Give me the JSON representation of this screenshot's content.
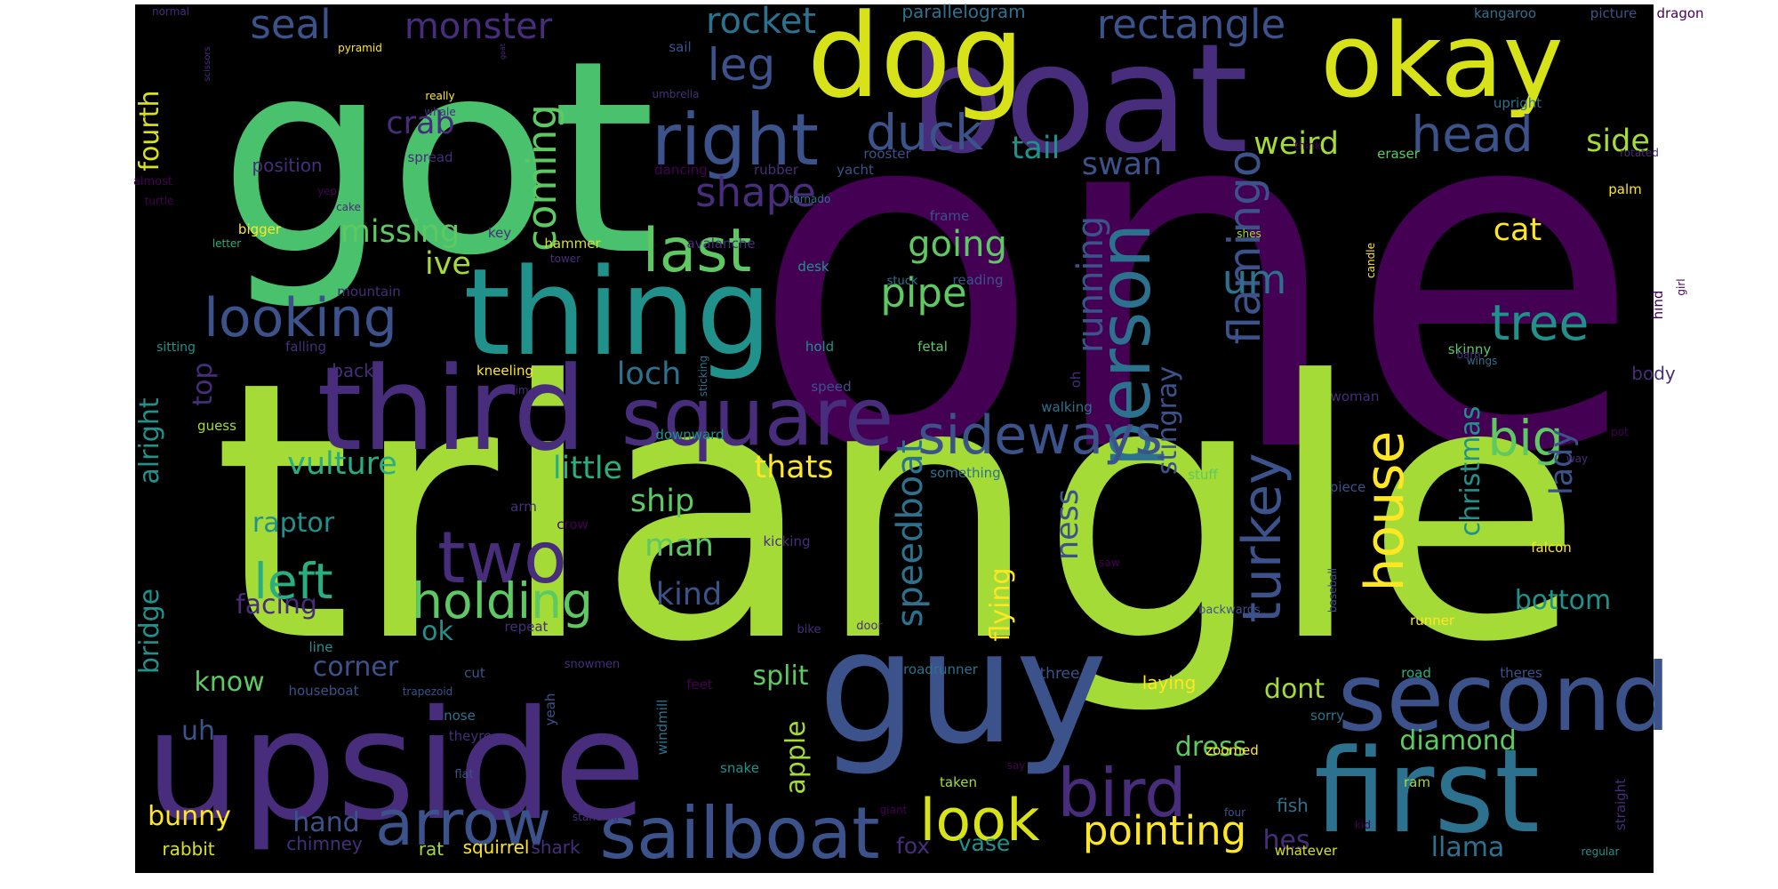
{
  "colors": {
    "page_background": "#ffffff",
    "cloud_background": "#000000",
    "palette": "viridis"
  },
  "words": [
    {
      "text": "one",
      "color": "#440154"
    },
    {
      "text": "triangle",
      "color": "#a5db36"
    },
    {
      "text": "got",
      "color": "#4ac16d"
    },
    {
      "text": "upside",
      "color": "#472d7b"
    },
    {
      "text": "guy",
      "color": "#3b528b"
    },
    {
      "text": "boat",
      "color": "#472d7b"
    },
    {
      "text": "dog",
      "color": "#d8e219"
    },
    {
      "text": "okay",
      "color": "#d8e219"
    },
    {
      "text": "first",
      "color": "#2c728e"
    },
    {
      "text": "thing",
      "color": "#21918c"
    },
    {
      "text": "third",
      "color": "#472d7b"
    },
    {
      "text": "second",
      "color": "#3b528b"
    },
    {
      "text": "square",
      "color": "#472d7b"
    },
    {
      "text": "right",
      "color": "#3b528b"
    },
    {
      "text": "sailboat",
      "color": "#3b528b"
    },
    {
      "text": "arrow",
      "color": "#3b528b"
    },
    {
      "text": "person",
      "color": "#2c728e"
    },
    {
      "text": "bird",
      "color": "#472d7b"
    },
    {
      "text": "last",
      "color": "#5ec962"
    },
    {
      "text": "looking",
      "color": "#3b528b"
    },
    {
      "text": "two",
      "color": "#472d7b"
    },
    {
      "text": "house",
      "color": "#fde725"
    },
    {
      "text": "look",
      "color": "#d8e219"
    },
    {
      "text": "sideways",
      "color": "#3b528b"
    },
    {
      "text": "holding",
      "color": "#5ec962"
    },
    {
      "text": "left",
      "color": "#28ae80"
    },
    {
      "text": "flamingo",
      "color": "#3b528b"
    },
    {
      "text": "turkey",
      "color": "#3b528b"
    },
    {
      "text": "head",
      "color": "#3b528b"
    },
    {
      "text": "rectangle",
      "color": "#3b528b"
    },
    {
      "text": "seal",
      "color": "#3b528b"
    },
    {
      "text": "monster",
      "color": "#472d7b"
    },
    {
      "text": "rocket",
      "color": "#2c728e"
    },
    {
      "text": "duck",
      "color": "#3b528b"
    },
    {
      "text": "tree",
      "color": "#21918c"
    },
    {
      "text": "pointing",
      "color": "#fde725"
    },
    {
      "text": "speedboat",
      "color": "#2c728e"
    },
    {
      "text": "running",
      "color": "#3b528b"
    },
    {
      "text": "big",
      "color": "#5ec962"
    },
    {
      "text": "coming",
      "color": "#5ec962"
    },
    {
      "text": "leg",
      "color": "#3b528b"
    },
    {
      "text": "shape",
      "color": "#472d7b"
    },
    {
      "text": "pipe",
      "color": "#5ec962"
    },
    {
      "text": "going",
      "color": "#5ec962"
    },
    {
      "text": "um",
      "color": "#2c728e"
    },
    {
      "text": "tail",
      "color": "#21918c"
    },
    {
      "text": "swan",
      "color": "#3b528b"
    },
    {
      "text": "weird",
      "color": "#a5db36"
    },
    {
      "text": "side",
      "color": "#a5db36"
    },
    {
      "text": "cat",
      "color": "#fde725"
    },
    {
      "text": "crab",
      "color": "#472d7b"
    },
    {
      "text": "missing",
      "color": "#5ec962"
    },
    {
      "text": "ive",
      "color": "#a5db36"
    },
    {
      "text": "loch",
      "color": "#2c728e"
    },
    {
      "text": "ship",
      "color": "#5ec962"
    },
    {
      "text": "man",
      "color": "#5ec962"
    },
    {
      "text": "thats",
      "color": "#fde725"
    },
    {
      "text": "little",
      "color": "#28ae80"
    },
    {
      "text": "vulture",
      "color": "#28ae80"
    },
    {
      "text": "kind",
      "color": "#3b528b"
    },
    {
      "text": "raptor",
      "color": "#21918c"
    },
    {
      "text": "stingray",
      "color": "#3b528b"
    },
    {
      "text": "christmas",
      "color": "#21918c"
    },
    {
      "text": "ness",
      "color": "#3b528b"
    },
    {
      "text": "lady",
      "color": "#3b528b"
    },
    {
      "text": "fourth",
      "color": "#d8e219"
    },
    {
      "text": "top",
      "color": "#472d7b"
    },
    {
      "text": "alright",
      "color": "#21918c"
    },
    {
      "text": "bridge",
      "color": "#21918c"
    },
    {
      "text": "facing",
      "color": "#472d7b"
    },
    {
      "text": "ok",
      "color": "#21918c"
    },
    {
      "text": "corner",
      "color": "#3b528b"
    },
    {
      "text": "know",
      "color": "#5ec962"
    },
    {
      "text": "split",
      "color": "#5ec962"
    },
    {
      "text": "flying",
      "color": "#fde725"
    },
    {
      "text": "bottom",
      "color": "#21918c"
    },
    {
      "text": "dont",
      "color": "#a5db36"
    },
    {
      "text": "diamond",
      "color": "#5ec962"
    },
    {
      "text": "dress",
      "color": "#5ec962"
    },
    {
      "text": "apple",
      "color": "#a5db36"
    },
    {
      "text": "uh",
      "color": "#3b528b"
    },
    {
      "text": "hand",
      "color": "#3b528b"
    },
    {
      "text": "bunny",
      "color": "#fde725"
    },
    {
      "text": "vase",
      "color": "#21918c"
    },
    {
      "text": "fox",
      "color": "#472d7b"
    },
    {
      "text": "hes",
      "color": "#472d7b"
    },
    {
      "text": "llama",
      "color": "#2c728e"
    },
    {
      "text": "chimney",
      "color": "#472d7b"
    },
    {
      "text": "squirrel",
      "color": "#fde725"
    },
    {
      "text": "shark",
      "color": "#472d7b"
    },
    {
      "text": "rat",
      "color": "#a5db36"
    },
    {
      "text": "rabbit",
      "color": "#d8e219"
    },
    {
      "text": "parallelogram",
      "color": "#2c728e"
    },
    {
      "text": "kangaroo",
      "color": "#2c728e"
    },
    {
      "text": "picture",
      "color": "#3b528b"
    },
    {
      "text": "dragon",
      "color": "#440154"
    },
    {
      "text": "normal",
      "color": "#472d7b"
    },
    {
      "text": "pyramid",
      "color": "#fde725"
    },
    {
      "text": "sail",
      "color": "#3b528b"
    },
    {
      "text": "goat",
      "color": "#472d7b"
    },
    {
      "text": "scissors",
      "color": "#472d7b"
    },
    {
      "text": "umbrella",
      "color": "#472d7b"
    },
    {
      "text": "really",
      "color": "#fde725"
    },
    {
      "text": "whale",
      "color": "#472d7b"
    },
    {
      "text": "upright",
      "color": "#2c728e"
    },
    {
      "text": "rooster",
      "color": "#3b528b"
    },
    {
      "text": "think",
      "color": "#440154"
    },
    {
      "text": "eraser",
      "color": "#5ec962"
    },
    {
      "text": "rotated",
      "color": "#472d7b"
    },
    {
      "text": "yacht",
      "color": "#3b528b"
    },
    {
      "text": "spread",
      "color": "#472d7b"
    },
    {
      "text": "position",
      "color": "#472d7b"
    },
    {
      "text": "almost",
      "color": "#440154"
    },
    {
      "text": "yep",
      "color": "#440154"
    },
    {
      "text": "rubber",
      "color": "#472d7b"
    },
    {
      "text": "dancing",
      "color": "#440154"
    },
    {
      "text": "turtle",
      "color": "#440154"
    },
    {
      "text": "cake",
      "color": "#472d7b"
    },
    {
      "text": "tornado",
      "color": "#2c728e"
    },
    {
      "text": "frame",
      "color": "#3b528b"
    },
    {
      "text": "palm",
      "color": "#fde725"
    },
    {
      "text": "bigger",
      "color": "#fde725"
    },
    {
      "text": "letter",
      "color": "#28ae80"
    },
    {
      "text": "key",
      "color": "#472d7b"
    },
    {
      "text": "hammer",
      "color": "#d8e219"
    },
    {
      "text": "avalanche",
      "color": "#472d7b"
    },
    {
      "text": "shes",
      "color": "#a5db36"
    },
    {
      "text": "tower",
      "color": "#472d7b"
    },
    {
      "text": "desk",
      "color": "#21918c"
    },
    {
      "text": "stuck",
      "color": "#2c728e"
    },
    {
      "text": "reading",
      "color": "#3b528b"
    },
    {
      "text": "candle",
      "color": "#fde725"
    },
    {
      "text": "hind",
      "color": "#440154"
    },
    {
      "text": "girl",
      "color": "#440154"
    },
    {
      "text": "mountain",
      "color": "#472d7b"
    },
    {
      "text": "skinny",
      "color": "#5ec962"
    },
    {
      "text": "sitting",
      "color": "#21918c"
    },
    {
      "text": "falling",
      "color": "#472d7b"
    },
    {
      "text": "hold",
      "color": "#21918c"
    },
    {
      "text": "fetal",
      "color": "#5ec962"
    },
    {
      "text": "barn",
      "color": "#472d7b"
    },
    {
      "text": "wings",
      "color": "#2c728e"
    },
    {
      "text": "back",
      "color": "#472d7b"
    },
    {
      "text": "kneeling",
      "color": "#fde725"
    },
    {
      "text": "im",
      "color": "#472d7b"
    },
    {
      "text": "sticking",
      "color": "#2c728e"
    },
    {
      "text": "oh",
      "color": "#472d7b"
    },
    {
      "text": "body",
      "color": "#472d7b"
    },
    {
      "text": "speed",
      "color": "#3b528b"
    },
    {
      "text": "walking",
      "color": "#2c728e"
    },
    {
      "text": "woman",
      "color": "#472d7b"
    },
    {
      "text": "guess",
      "color": "#a5db36"
    },
    {
      "text": "pot",
      "color": "#440154"
    },
    {
      "text": "downward",
      "color": "#21918c"
    },
    {
      "text": "something",
      "color": "#2c728e"
    },
    {
      "text": "way",
      "color": "#472d7b"
    },
    {
      "text": "stuff",
      "color": "#5ec962"
    },
    {
      "text": "piece",
      "color": "#3b528b"
    },
    {
      "text": "arm",
      "color": "#472d7b"
    },
    {
      "text": "crow",
      "color": "#440154"
    },
    {
      "text": "kicking",
      "color": "#472d7b"
    },
    {
      "text": "saw",
      "color": "#440154"
    },
    {
      "text": "falcon",
      "color": "#fde725"
    },
    {
      "text": "baseball",
      "color": "#3b528b"
    },
    {
      "text": "repeat",
      "color": "#472d7b"
    },
    {
      "text": "door",
      "color": "#472d7b"
    },
    {
      "text": "bike",
      "color": "#472d7b"
    },
    {
      "text": "backwards",
      "color": "#3b528b"
    },
    {
      "text": "runner",
      "color": "#fde725"
    },
    {
      "text": "line",
      "color": "#21918c"
    },
    {
      "text": "snowmen",
      "color": "#472d7b"
    },
    {
      "text": "cut",
      "color": "#3b528b"
    },
    {
      "text": "roadrunner",
      "color": "#2c728e"
    },
    {
      "text": "three",
      "color": "#3b528b"
    },
    {
      "text": "road",
      "color": "#28ae80"
    },
    {
      "text": "theres",
      "color": "#3b528b"
    },
    {
      "text": "houseboat",
      "color": "#3b528b"
    },
    {
      "text": "trapezoid",
      "color": "#3b528b"
    },
    {
      "text": "feet",
      "color": "#440154"
    },
    {
      "text": "laying",
      "color": "#fde725"
    },
    {
      "text": "yeah",
      "color": "#3b528b"
    },
    {
      "text": "windmill",
      "color": "#2c728e"
    },
    {
      "text": "sorry",
      "color": "#2c728e"
    },
    {
      "text": "nose",
      "color": "#2c728e"
    },
    {
      "text": "theyre",
      "color": "#472d7b"
    },
    {
      "text": "zoomed",
      "color": "#fde725"
    },
    {
      "text": "snake",
      "color": "#21918c"
    },
    {
      "text": "say",
      "color": "#440154"
    },
    {
      "text": "flat",
      "color": "#3b528b"
    },
    {
      "text": "taken",
      "color": "#a5db36"
    },
    {
      "text": "ram",
      "color": "#a5db36"
    },
    {
      "text": "fish",
      "color": "#2c728e"
    },
    {
      "text": "giant",
      "color": "#440154"
    },
    {
      "text": "four",
      "color": "#3b528b"
    },
    {
      "text": "kid",
      "color": "#440154"
    },
    {
      "text": "standing",
      "color": "#472d7b"
    },
    {
      "text": "straight",
      "color": "#472d7b"
    },
    {
      "text": "whatever",
      "color": "#d8e219"
    },
    {
      "text": "regular",
      "color": "#21918c"
    }
  ]
}
